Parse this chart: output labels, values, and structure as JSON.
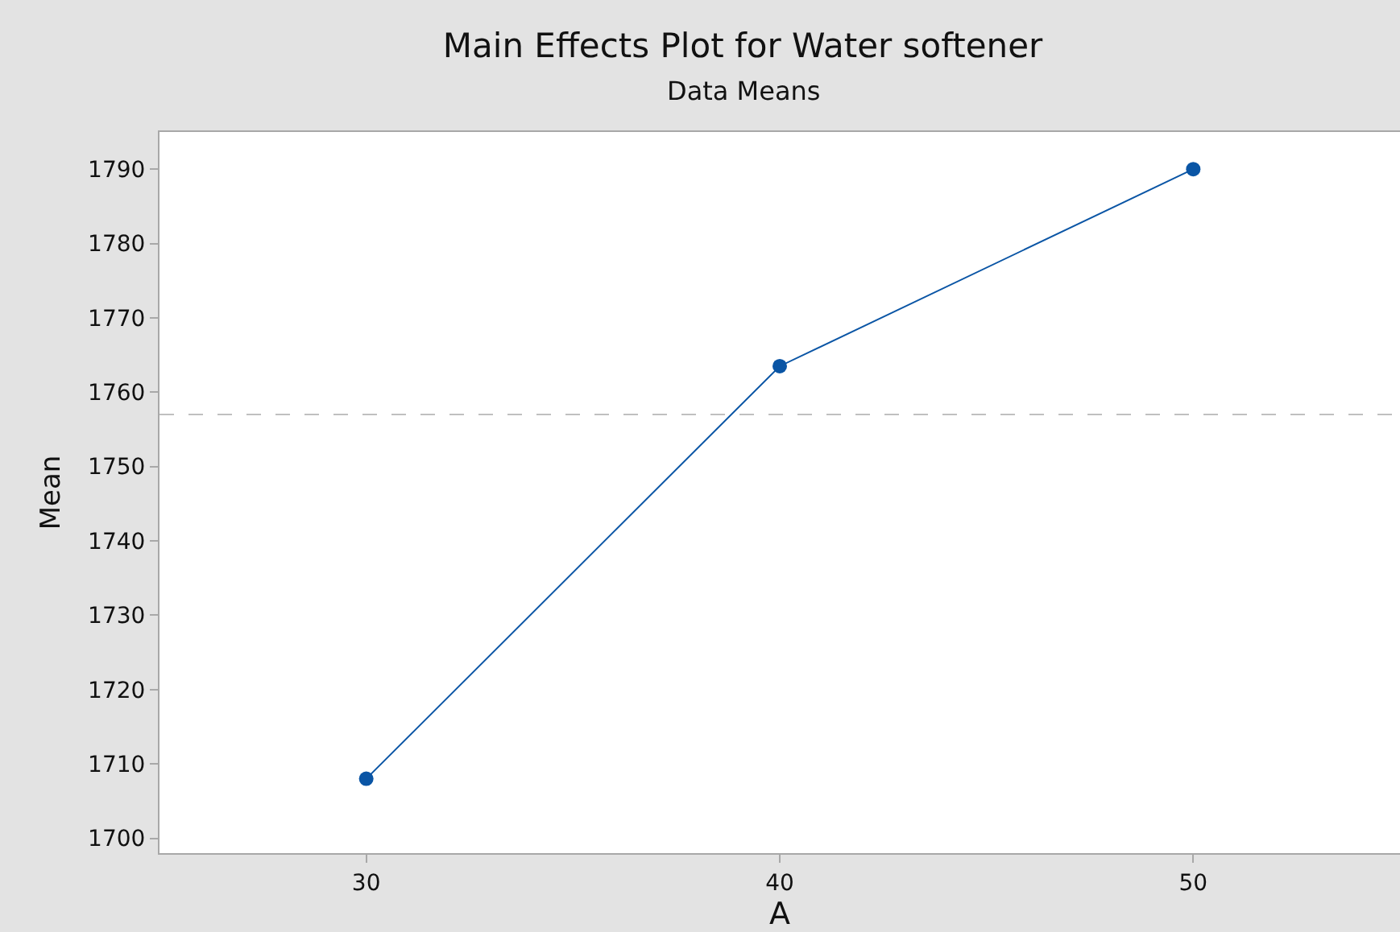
{
  "chart_data": {
    "type": "line",
    "title": "Main Effects Plot for Water softener",
    "subtitle": "Data Means",
    "xlabel": "A",
    "ylabel": "Mean",
    "x": [
      30,
      40,
      50
    ],
    "series": [
      {
        "color": "#0a55a5",
        "values": [
          1708,
          1763.5,
          1790
        ]
      }
    ],
    "xlim": [
      25,
      55
    ],
    "xticks": [
      30,
      40,
      50
    ],
    "ylim": [
      1698,
      1795
    ],
    "yticks": [
      1700,
      1710,
      1720,
      1730,
      1740,
      1750,
      1760,
      1770,
      1780,
      1790
    ],
    "ref_lines": [
      {
        "axis": "y",
        "value": 1757,
        "color": "#c0c0c0",
        "line_style": "dashed"
      }
    ],
    "marker": "circle",
    "line_style": "solid"
  }
}
